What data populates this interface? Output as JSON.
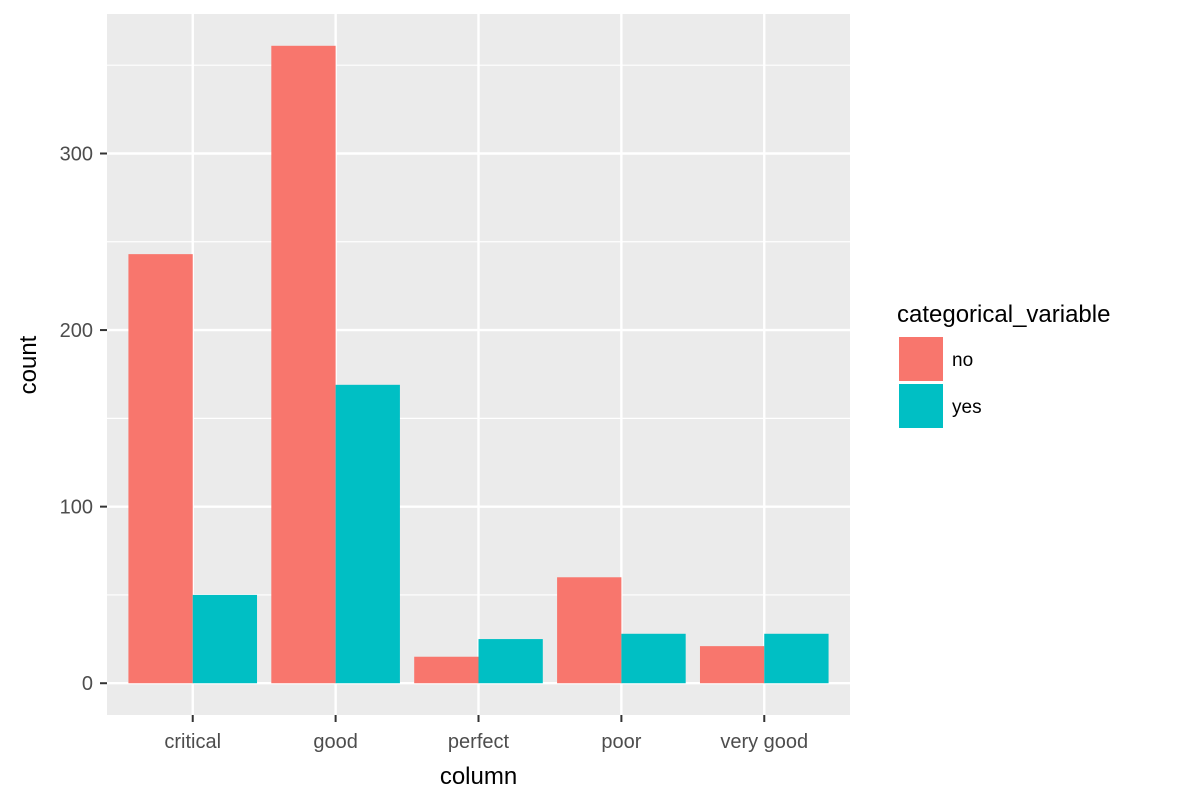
{
  "chart_data": {
    "type": "bar",
    "xlabel": "column",
    "ylabel": "count",
    "categories": [
      "critical",
      "good",
      "perfect",
      "poor",
      "very good"
    ],
    "series": [
      {
        "name": "no",
        "color": "#F8766D",
        "values": [
          243,
          361,
          15,
          60,
          21
        ]
      },
      {
        "name": "yes",
        "color": "#00BFC4",
        "values": [
          50,
          169,
          25,
          28,
          28
        ]
      }
    ],
    "ylim": [
      -18,
      379
    ],
    "yticks": [
      0,
      100,
      200,
      300
    ],
    "legend": {
      "title": "categorical_variable",
      "position": "right"
    },
    "grid": true,
    "panel_background": "#EBEBEB"
  }
}
